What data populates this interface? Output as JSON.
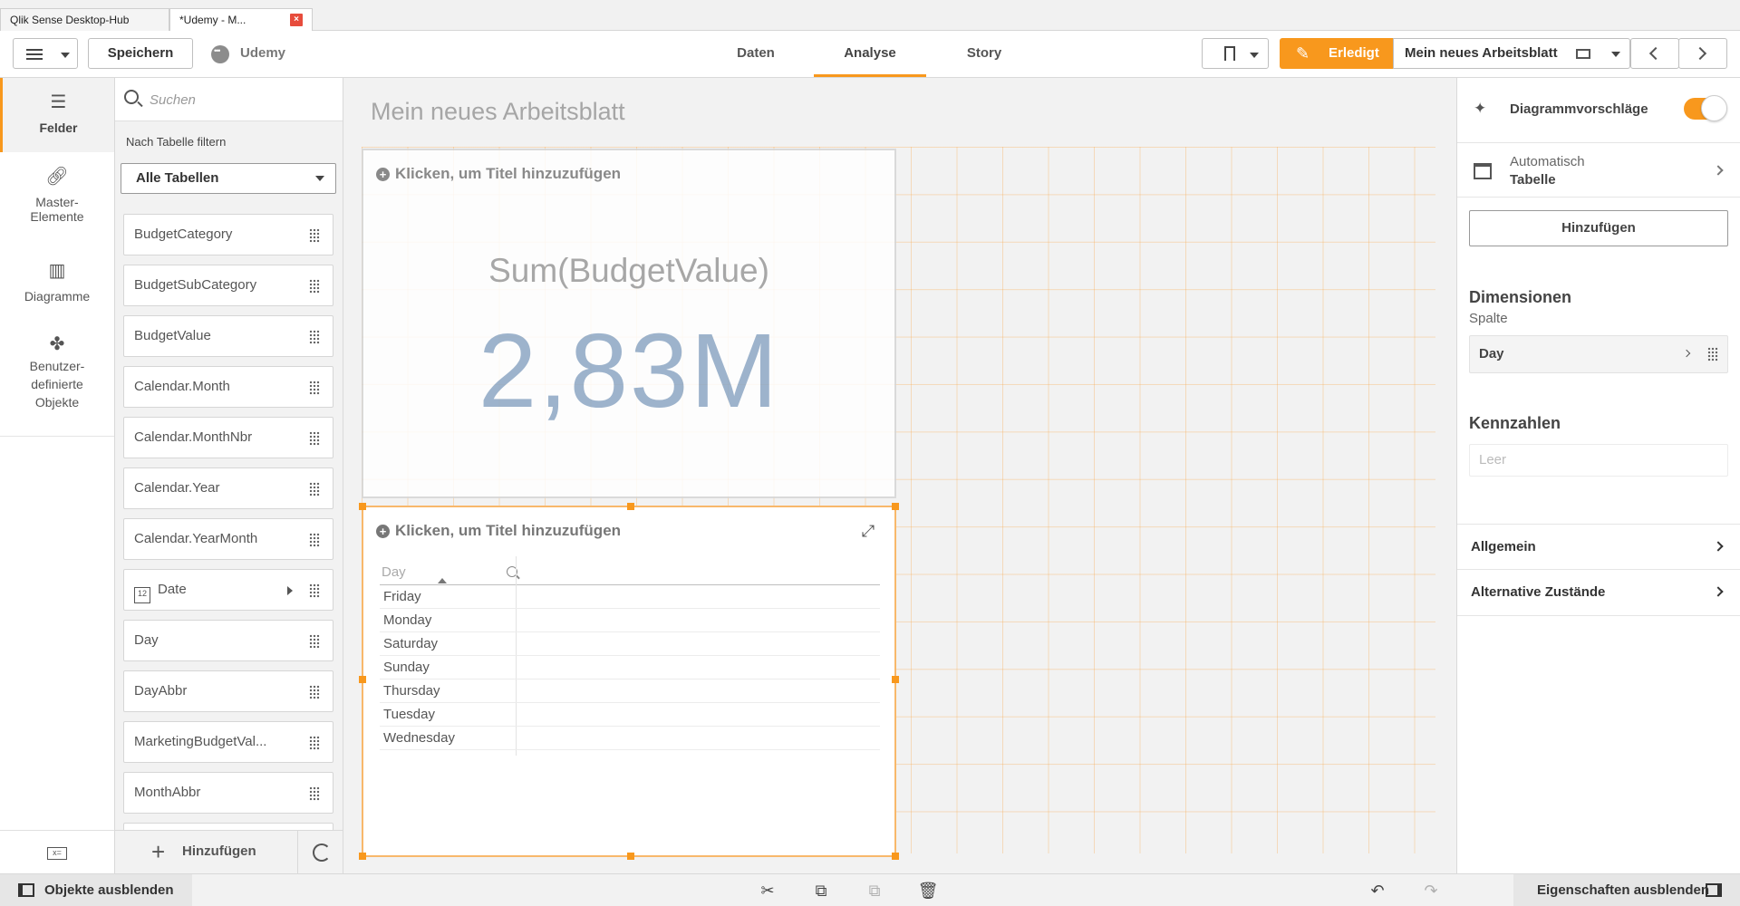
{
  "browser_tabs": [
    {
      "label": "Qlik Sense Desktop-Hub"
    },
    {
      "label": "*Udemy - M..."
    }
  ],
  "toolbar": {
    "save_label": "Speichern",
    "app_name": "Udemy",
    "nav_tabs": [
      {
        "label": "Daten",
        "active": false
      },
      {
        "label": "Analyse",
        "active": true
      },
      {
        "label": "Story",
        "active": false
      }
    ],
    "done_label": "Erledigt",
    "sheet_name": "Mein neues Arbeitsblatt",
    "accent_color": "#f8981d"
  },
  "rail": {
    "items": [
      {
        "label": "Felder",
        "icon": "database-icon",
        "active": true
      },
      {
        "label": "Master-Elemente",
        "icon": "link-icon",
        "active": false
      },
      {
        "label": "Diagramme",
        "icon": "bar-chart-icon",
        "active": false
      },
      {
        "label": "Benutzer-definierte Objekte",
        "icon": "puzzle-icon",
        "active": false
      }
    ]
  },
  "fields_panel": {
    "search_placeholder": "Suchen",
    "filter_label": "Nach Tabelle filtern",
    "table_select": "Alle Tabellen",
    "fields": [
      "BudgetCategory",
      "BudgetSubCategory",
      "BudgetValue",
      "Calendar.Month",
      "Calendar.MonthNbr",
      "Calendar.Year",
      "Calendar.YearMonth",
      "Date",
      "Day",
      "DayAbbr",
      "MarketingBudgetVal...",
      "MonthAbbr"
    ],
    "date_icon_text": "12",
    "add_label": "Hinzufügen"
  },
  "canvas": {
    "sheet_title": "Mein neues Arbeitsblatt",
    "kpi": {
      "title_placeholder": "Klicken, um Titel hinzuzufügen",
      "measure_label": "Sum(BudgetValue)",
      "value": "2,83M"
    },
    "table": {
      "title_placeholder": "Klicken, um Titel hinzuzufügen",
      "column_header": "Day",
      "rows": [
        "Friday",
        "Monday",
        "Saturday",
        "Sunday",
        "Thursday",
        "Tuesday",
        "Wednesday"
      ]
    }
  },
  "properties": {
    "suggestions_label": "Diagrammvorschläge",
    "suggestions_on": true,
    "chart_type_small": "Automatisch",
    "chart_type": "Tabelle",
    "add_label": "Hinzufügen",
    "dimensions_title": "Dimensionen",
    "dimensions_sub": "Spalte",
    "dimension_item": "Day",
    "measures_title": "Kennzahlen",
    "measures_empty": "Leer",
    "sections": [
      "Allgemein",
      "Alternative Zustände"
    ]
  },
  "footer": {
    "hide_objects": "Objekte ausblenden",
    "hide_properties": "Eigenschaften ausblenden"
  }
}
